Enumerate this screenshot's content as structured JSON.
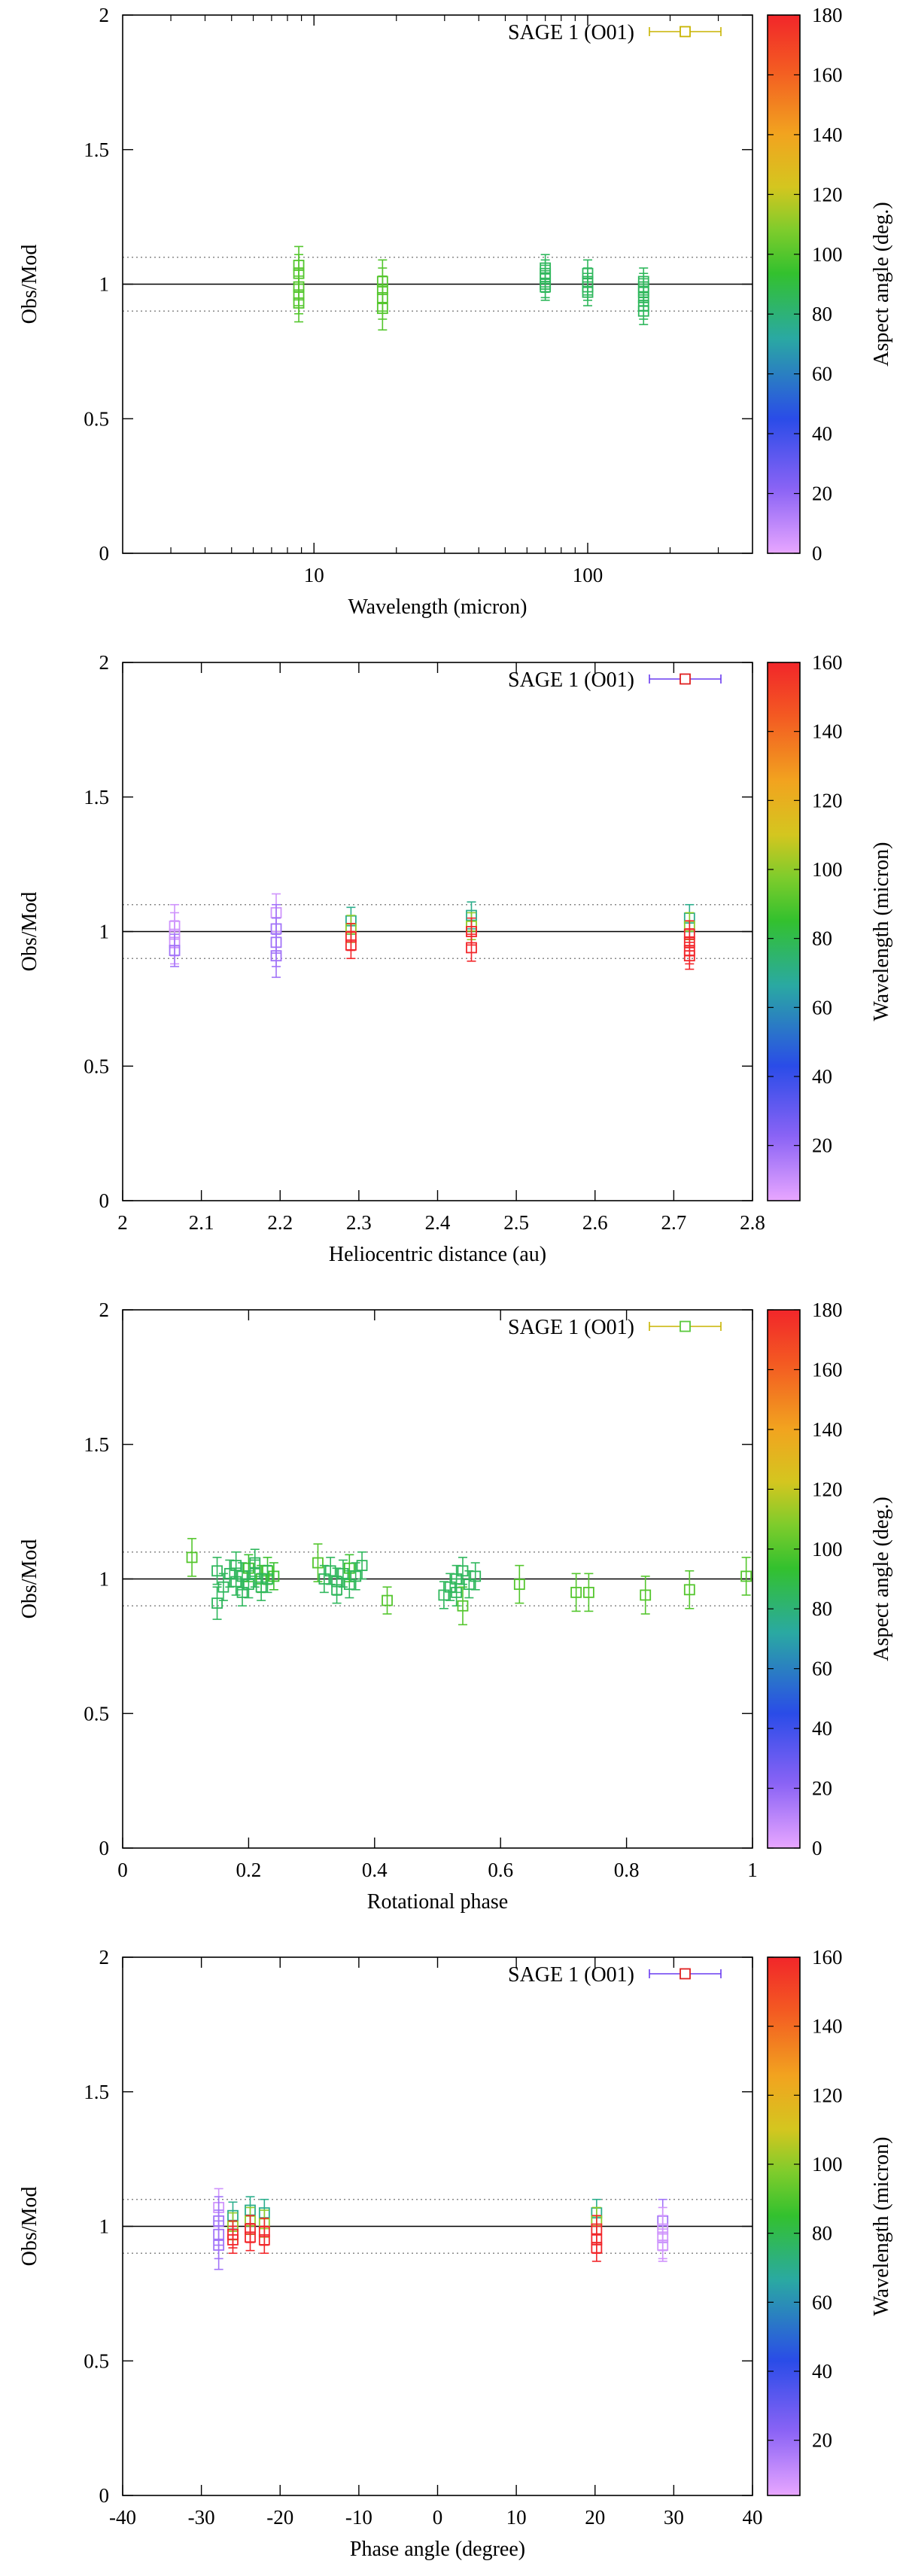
{
  "chart_data": [
    {
      "type": "scatter",
      "ylabel": "Obs/Mod",
      "xlabel": "Wavelength (micron)",
      "xscale": "log",
      "xlim": [
        2,
        400
      ],
      "ylim": [
        0,
        2
      ],
      "x_ticks": [
        10,
        100
      ],
      "x_tick_labels": [
        "10",
        "100"
      ],
      "y_ticks": [
        0,
        0.5,
        1,
        1.5,
        2
      ],
      "y_tick_labels": [
        "0",
        "0.5",
        "1",
        "1.5",
        "2"
      ],
      "reference_lines": [
        1.0
      ],
      "dotted_lines": [
        0.9,
        1.1
      ],
      "legend": {
        "label": "SAGE 1 (O01)",
        "color": "#c8b400",
        "position": "top-right"
      },
      "colorbar": {
        "label": "Aspect angle (deg.)",
        "range": [
          0,
          180
        ],
        "ticks": [
          0,
          20,
          40,
          60,
          80,
          100,
          120,
          140,
          160,
          180
        ],
        "tick_labels": [
          "0",
          "20",
          "40",
          "60",
          "80",
          "100",
          "120",
          "140",
          "160",
          "180"
        ]
      },
      "points": [
        {
          "x": 8.8,
          "y": 1.07,
          "err": 0.07,
          "c": 100
        },
        {
          "x": 8.8,
          "y": 1.04,
          "err": 0.07,
          "c": 100
        },
        {
          "x": 8.8,
          "y": 0.99,
          "err": 0.07,
          "c": 100
        },
        {
          "x": 8.8,
          "y": 0.96,
          "err": 0.07,
          "c": 100
        },
        {
          "x": 8.8,
          "y": 0.93,
          "err": 0.07,
          "c": 100
        },
        {
          "x": 17.8,
          "y": 1.01,
          "err": 0.08,
          "c": 100
        },
        {
          "x": 17.8,
          "y": 0.98,
          "err": 0.08,
          "c": 100
        },
        {
          "x": 17.8,
          "y": 0.95,
          "err": 0.08,
          "c": 100
        },
        {
          "x": 17.8,
          "y": 0.91,
          "err": 0.08,
          "c": 100
        },
        {
          "x": 70,
          "y": 1.06,
          "err": 0.05,
          "c": 85
        },
        {
          "x": 70,
          "y": 1.04,
          "err": 0.05,
          "c": 85
        },
        {
          "x": 70,
          "y": 1.02,
          "err": 0.05,
          "c": 85
        },
        {
          "x": 70,
          "y": 1.0,
          "err": 0.05,
          "c": 85
        },
        {
          "x": 70,
          "y": 0.99,
          "err": 0.05,
          "c": 85
        },
        {
          "x": 100,
          "y": 1.04,
          "err": 0.05,
          "c": 85
        },
        {
          "x": 100,
          "y": 1.01,
          "err": 0.05,
          "c": 85
        },
        {
          "x": 100,
          "y": 0.99,
          "err": 0.05,
          "c": 85
        },
        {
          "x": 100,
          "y": 0.97,
          "err": 0.05,
          "c": 85
        },
        {
          "x": 160,
          "y": 1.01,
          "err": 0.05,
          "c": 85
        },
        {
          "x": 160,
          "y": 0.99,
          "err": 0.05,
          "c": 85
        },
        {
          "x": 160,
          "y": 0.97,
          "err": 0.05,
          "c": 85
        },
        {
          "x": 160,
          "y": 0.95,
          "err": 0.05,
          "c": 85
        },
        {
          "x": 160,
          "y": 0.92,
          "err": 0.05,
          "c": 85
        },
        {
          "x": 160,
          "y": 0.9,
          "err": 0.05,
          "c": 85
        }
      ]
    },
    {
      "type": "scatter",
      "ylabel": "Obs/Mod",
      "xlabel": "Heliocentric distance (au)",
      "xscale": "linear",
      "xlim": [
        2,
        2.8
      ],
      "ylim": [
        0,
        2
      ],
      "x_ticks": [
        2,
        2.1,
        2.2,
        2.3,
        2.4,
        2.5,
        2.6,
        2.7,
        2.8
      ],
      "x_tick_labels": [
        "2",
        "2.1",
        "2.2",
        "2.3",
        "2.4",
        "2.5",
        "2.6",
        "2.7",
        "2.8"
      ],
      "y_ticks": [
        0,
        0.5,
        1,
        1.5,
        2
      ],
      "y_tick_labels": [
        "0",
        "0.5",
        "1",
        "1.5",
        "2"
      ],
      "reference_lines": [
        1.0
      ],
      "dotted_lines": [
        0.9,
        1.1
      ],
      "legend": {
        "label": "SAGE 1 (O01)",
        "color": "#e02020",
        "bar_color": "#6a3cf0",
        "position": "top-right"
      },
      "colorbar": {
        "label": "Wavelength (micron)",
        "range": [
          4,
          160
        ],
        "ticks": [
          20,
          40,
          60,
          80,
          100,
          120,
          140,
          160
        ],
        "tick_labels": [
          "20",
          "40",
          "60",
          "80",
          "100",
          "120",
          "140",
          "160"
        ]
      },
      "points": [
        {
          "x": 2.066,
          "y": 1.02,
          "err": 0.08,
          "c": 9
        },
        {
          "x": 2.066,
          "y": 0.99,
          "err": 0.08,
          "c": 9
        },
        {
          "x": 2.066,
          "y": 0.96,
          "err": 0.08,
          "c": 9
        },
        {
          "x": 2.066,
          "y": 0.93,
          "err": 0.06,
          "c": 18
        },
        {
          "x": 2.195,
          "y": 1.07,
          "err": 0.07,
          "c": 9
        },
        {
          "x": 2.195,
          "y": 1.01,
          "err": 0.09,
          "c": 18
        },
        {
          "x": 2.195,
          "y": 0.96,
          "err": 0.09,
          "c": 18
        },
        {
          "x": 2.195,
          "y": 0.91,
          "err": 0.08,
          "c": 18
        },
        {
          "x": 2.29,
          "y": 1.04,
          "err": 0.05,
          "c": 70
        },
        {
          "x": 2.29,
          "y": 1.01,
          "err": 0.05,
          "c": 100
        },
        {
          "x": 2.29,
          "y": 0.98,
          "err": 0.05,
          "c": 160
        },
        {
          "x": 2.29,
          "y": 0.95,
          "err": 0.05,
          "c": 160
        },
        {
          "x": 2.443,
          "y": 1.06,
          "err": 0.05,
          "c": 70
        },
        {
          "x": 2.443,
          "y": 1.02,
          "err": 0.05,
          "c": 100
        },
        {
          "x": 2.443,
          "y": 1.0,
          "err": 0.05,
          "c": 160
        },
        {
          "x": 2.443,
          "y": 0.94,
          "err": 0.05,
          "c": 160
        },
        {
          "x": 2.72,
          "y": 1.05,
          "err": 0.05,
          "c": 70
        },
        {
          "x": 2.72,
          "y": 1.02,
          "err": 0.05,
          "c": 100
        },
        {
          "x": 2.72,
          "y": 0.99,
          "err": 0.05,
          "c": 160
        },
        {
          "x": 2.72,
          "y": 0.96,
          "err": 0.05,
          "c": 160
        },
        {
          "x": 2.72,
          "y": 0.93,
          "err": 0.05,
          "c": 160
        },
        {
          "x": 2.72,
          "y": 0.91,
          "err": 0.05,
          "c": 160
        }
      ]
    },
    {
      "type": "scatter",
      "ylabel": "Obs/Mod",
      "xlabel": "Rotational phase",
      "xscale": "linear",
      "xlim": [
        0,
        1
      ],
      "ylim": [
        0,
        2
      ],
      "x_ticks": [
        0,
        0.2,
        0.4,
        0.6,
        0.8,
        1
      ],
      "x_tick_labels": [
        "0",
        "0.2",
        "0.4",
        "0.6",
        "0.8",
        "1"
      ],
      "y_ticks": [
        0,
        0.5,
        1,
        1.5,
        2
      ],
      "y_tick_labels": [
        "0",
        "0.5",
        "1",
        "1.5",
        "2"
      ],
      "reference_lines": [
        1.0
      ],
      "dotted_lines": [
        0.9,
        1.1
      ],
      "legend": {
        "label": "SAGE 1 (O01)",
        "color": "#5ac83c",
        "bar_color": "#c8b400",
        "position": "top-right"
      },
      "colorbar": {
        "label": "Aspect angle (deg.)",
        "range": [
          0,
          180
        ],
        "ticks": [
          0,
          20,
          40,
          60,
          80,
          100,
          120,
          140,
          160,
          180
        ],
        "tick_labels": [
          "0",
          "20",
          "40",
          "60",
          "80",
          "100",
          "120",
          "140",
          "160",
          "180"
        ]
      },
      "points": [
        {
          "x": 0.11,
          "y": 1.08,
          "err": 0.07,
          "c": 100
        },
        {
          "x": 0.15,
          "y": 0.91,
          "err": 0.06,
          "c": 85
        },
        {
          "x": 0.15,
          "y": 1.03,
          "err": 0.05,
          "c": 85
        },
        {
          "x": 0.16,
          "y": 0.97,
          "err": 0.05,
          "c": 85
        },
        {
          "x": 0.17,
          "y": 1.02,
          "err": 0.05,
          "c": 85
        },
        {
          "x": 0.18,
          "y": 0.99,
          "err": 0.05,
          "c": 85
        },
        {
          "x": 0.18,
          "y": 1.05,
          "err": 0.05,
          "c": 85
        },
        {
          "x": 0.19,
          "y": 0.95,
          "err": 0.05,
          "c": 85
        },
        {
          "x": 0.19,
          "y": 1.01,
          "err": 0.05,
          "c": 85
        },
        {
          "x": 0.2,
          "y": 1.04,
          "err": 0.05,
          "c": 95
        },
        {
          "x": 0.2,
          "y": 0.98,
          "err": 0.05,
          "c": 85
        },
        {
          "x": 0.21,
          "y": 1.02,
          "err": 0.05,
          "c": 85
        },
        {
          "x": 0.21,
          "y": 1.06,
          "err": 0.05,
          "c": 85
        },
        {
          "x": 0.22,
          "y": 1.0,
          "err": 0.05,
          "c": 95
        },
        {
          "x": 0.22,
          "y": 0.97,
          "err": 0.05,
          "c": 85
        },
        {
          "x": 0.23,
          "y": 1.03,
          "err": 0.05,
          "c": 95
        },
        {
          "x": 0.23,
          "y": 1.0,
          "err": 0.05,
          "c": 85
        },
        {
          "x": 0.24,
          "y": 1.01,
          "err": 0.05,
          "c": 95
        },
        {
          "x": 0.31,
          "y": 1.06,
          "err": 0.07,
          "c": 100
        },
        {
          "x": 0.32,
          "y": 1.0,
          "err": 0.05,
          "c": 85
        },
        {
          "x": 0.33,
          "y": 1.03,
          "err": 0.05,
          "c": 85
        },
        {
          "x": 0.34,
          "y": 0.99,
          "err": 0.05,
          "c": 85
        },
        {
          "x": 0.34,
          "y": 0.96,
          "err": 0.05,
          "c": 85
        },
        {
          "x": 0.35,
          "y": 1.02,
          "err": 0.05,
          "c": 85
        },
        {
          "x": 0.36,
          "y": 0.98,
          "err": 0.05,
          "c": 85
        },
        {
          "x": 0.36,
          "y": 1.04,
          "err": 0.05,
          "c": 95
        },
        {
          "x": 0.37,
          "y": 1.01,
          "err": 0.05,
          "c": 85
        },
        {
          "x": 0.38,
          "y": 1.05,
          "err": 0.05,
          "c": 85
        },
        {
          "x": 0.42,
          "y": 0.92,
          "err": 0.05,
          "c": 100
        },
        {
          "x": 0.51,
          "y": 0.94,
          "err": 0.05,
          "c": 85
        },
        {
          "x": 0.52,
          "y": 0.97,
          "err": 0.05,
          "c": 85
        },
        {
          "x": 0.53,
          "y": 1.0,
          "err": 0.05,
          "c": 85
        },
        {
          "x": 0.53,
          "y": 0.95,
          "err": 0.05,
          "c": 85
        },
        {
          "x": 0.54,
          "y": 1.03,
          "err": 0.05,
          "c": 85
        },
        {
          "x": 0.54,
          "y": 0.9,
          "err": 0.07,
          "c": 100
        },
        {
          "x": 0.55,
          "y": 0.98,
          "err": 0.05,
          "c": 85
        },
        {
          "x": 0.56,
          "y": 1.01,
          "err": 0.05,
          "c": 85
        },
        {
          "x": 0.63,
          "y": 0.98,
          "err": 0.07,
          "c": 100
        },
        {
          "x": 0.72,
          "y": 0.95,
          "err": 0.07,
          "c": 100
        },
        {
          "x": 0.74,
          "y": 0.95,
          "err": 0.07,
          "c": 100
        },
        {
          "x": 0.83,
          "y": 0.94,
          "err": 0.07,
          "c": 100
        },
        {
          "x": 0.9,
          "y": 0.96,
          "err": 0.07,
          "c": 100
        },
        {
          "x": 0.99,
          "y": 1.01,
          "err": 0.07,
          "c": 100
        }
      ]
    },
    {
      "type": "scatter",
      "ylabel": "Obs/Mod",
      "xlabel": "Phase angle (degree)",
      "xscale": "linear",
      "xlim": [
        -40,
        40
      ],
      "ylim": [
        0,
        2
      ],
      "x_ticks": [
        -40,
        -30,
        -20,
        -10,
        0,
        10,
        20,
        30,
        40
      ],
      "x_tick_labels": [
        "-40",
        "-30",
        "-20",
        "-10",
        "0",
        "10",
        "20",
        "30",
        "40"
      ],
      "y_ticks": [
        0,
        0.5,
        1,
        1.5,
        2
      ],
      "y_tick_labels": [
        "0",
        "0.5",
        "1",
        "1.5",
        "2"
      ],
      "reference_lines": [
        1.0
      ],
      "dotted_lines": [
        0.9,
        1.1
      ],
      "legend": {
        "label": "SAGE 1 (O01)",
        "color": "#e02020",
        "bar_color": "#6a3cf0",
        "position": "top-right"
      },
      "colorbar": {
        "label": "Wavelength (micron)",
        "range": [
          4,
          160
        ],
        "ticks": [
          20,
          40,
          60,
          80,
          100,
          120,
          140,
          160
        ],
        "tick_labels": [
          "20",
          "40",
          "60",
          "80",
          "100",
          "120",
          "140",
          "160"
        ]
      },
      "points": [
        {
          "x": -27.8,
          "y": 1.07,
          "err": 0.07,
          "c": 9
        },
        {
          "x": -27.8,
          "y": 1.02,
          "err": 0.09,
          "c": 18
        },
        {
          "x": -27.8,
          "y": 0.97,
          "err": 0.09,
          "c": 18
        },
        {
          "x": -27.8,
          "y": 0.93,
          "err": 0.09,
          "c": 18
        },
        {
          "x": -26.0,
          "y": 1.04,
          "err": 0.05,
          "c": 70
        },
        {
          "x": -26.0,
          "y": 1.0,
          "err": 0.05,
          "c": 100
        },
        {
          "x": -26.0,
          "y": 0.97,
          "err": 0.05,
          "c": 160
        },
        {
          "x": -26.0,
          "y": 0.95,
          "err": 0.05,
          "c": 160
        },
        {
          "x": -23.8,
          "y": 1.06,
          "err": 0.05,
          "c": 70
        },
        {
          "x": -23.8,
          "y": 1.02,
          "err": 0.05,
          "c": 100
        },
        {
          "x": -23.8,
          "y": 0.99,
          "err": 0.05,
          "c": 160
        },
        {
          "x": -23.8,
          "y": 0.96,
          "err": 0.05,
          "c": 160
        },
        {
          "x": -22.0,
          "y": 1.05,
          "err": 0.05,
          "c": 70
        },
        {
          "x": -22.0,
          "y": 1.01,
          "err": 0.05,
          "c": 100
        },
        {
          "x": -22.0,
          "y": 0.98,
          "err": 0.05,
          "c": 160
        },
        {
          "x": -22.0,
          "y": 0.95,
          "err": 0.05,
          "c": 160
        },
        {
          "x": 20.2,
          "y": 1.05,
          "err": 0.05,
          "c": 70
        },
        {
          "x": 20.2,
          "y": 1.02,
          "err": 0.05,
          "c": 100
        },
        {
          "x": 20.2,
          "y": 0.99,
          "err": 0.05,
          "c": 160
        },
        {
          "x": 20.2,
          "y": 0.95,
          "err": 0.05,
          "c": 160
        },
        {
          "x": 20.2,
          "y": 0.92,
          "err": 0.05,
          "c": 160
        },
        {
          "x": 28.6,
          "y": 1.02,
          "err": 0.08,
          "c": 18
        },
        {
          "x": 28.6,
          "y": 0.99,
          "err": 0.08,
          "c": 9
        },
        {
          "x": 28.6,
          "y": 0.96,
          "err": 0.08,
          "c": 9
        },
        {
          "x": 28.6,
          "y": 0.93,
          "err": 0.06,
          "c": 9
        }
      ]
    }
  ]
}
